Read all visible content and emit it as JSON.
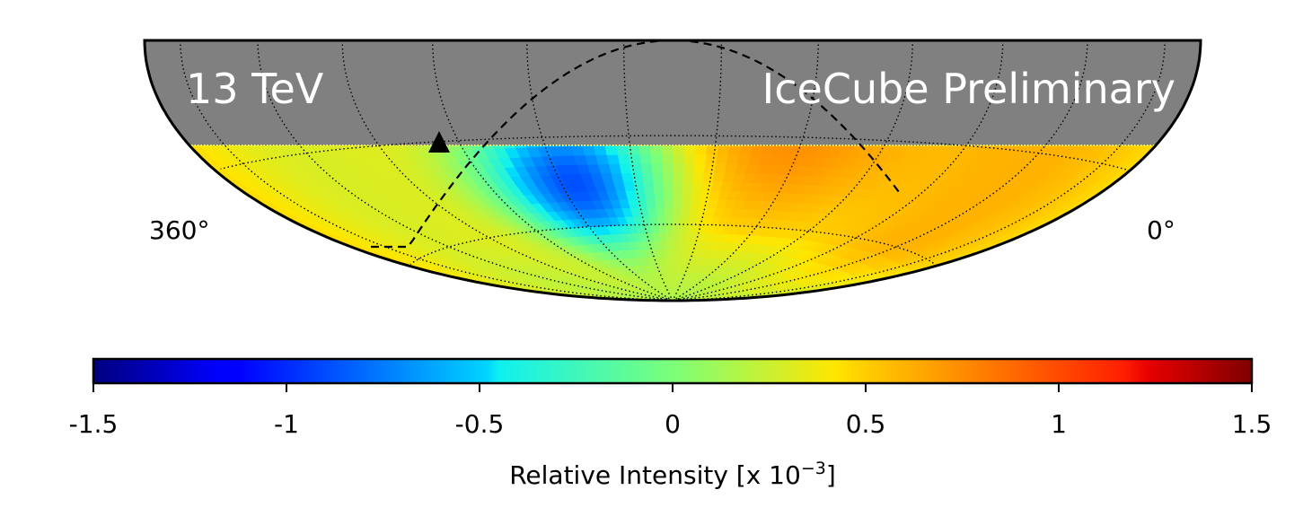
{
  "chart_data": {
    "type": "heatmap",
    "projection": "hammer-aitoff (southern sky)",
    "energy_label": "13 TeV",
    "watermark": "IceCube Preliminary",
    "longitude_labels": {
      "left": "360°",
      "right": "0°"
    },
    "colorbar": {
      "title_prefix": "Relative Intensity [x 10",
      "title_exponent": "−3",
      "title_suffix": "]",
      "vmin": -1.5,
      "vmax": 1.5,
      "ticks": [
        -1.5,
        -1,
        -0.5,
        0,
        0.5,
        1,
        1.5
      ],
      "tick_labels": [
        "-1.5",
        "-1",
        "-0.5",
        "0",
        "0.5",
        "1",
        "1.5"
      ],
      "colormap": "jet"
    },
    "regions": [
      {
        "name": "deficit",
        "ra_center_deg": 220,
        "dec_center_deg": -45,
        "relative_intensity": -1.2
      },
      {
        "name": "excess",
        "ra_center_deg": 140,
        "dec_center_deg": -30,
        "relative_intensity": 0.9
      }
    ],
    "masked_region": "declination above -25° (grey)",
    "galactic_plane": {
      "style": "dashed",
      "marker": "triangle (galactic center)"
    },
    "colors": {
      "mask": "#808080",
      "outline": "#000000",
      "text_on_mask": "#ffffff"
    }
  }
}
